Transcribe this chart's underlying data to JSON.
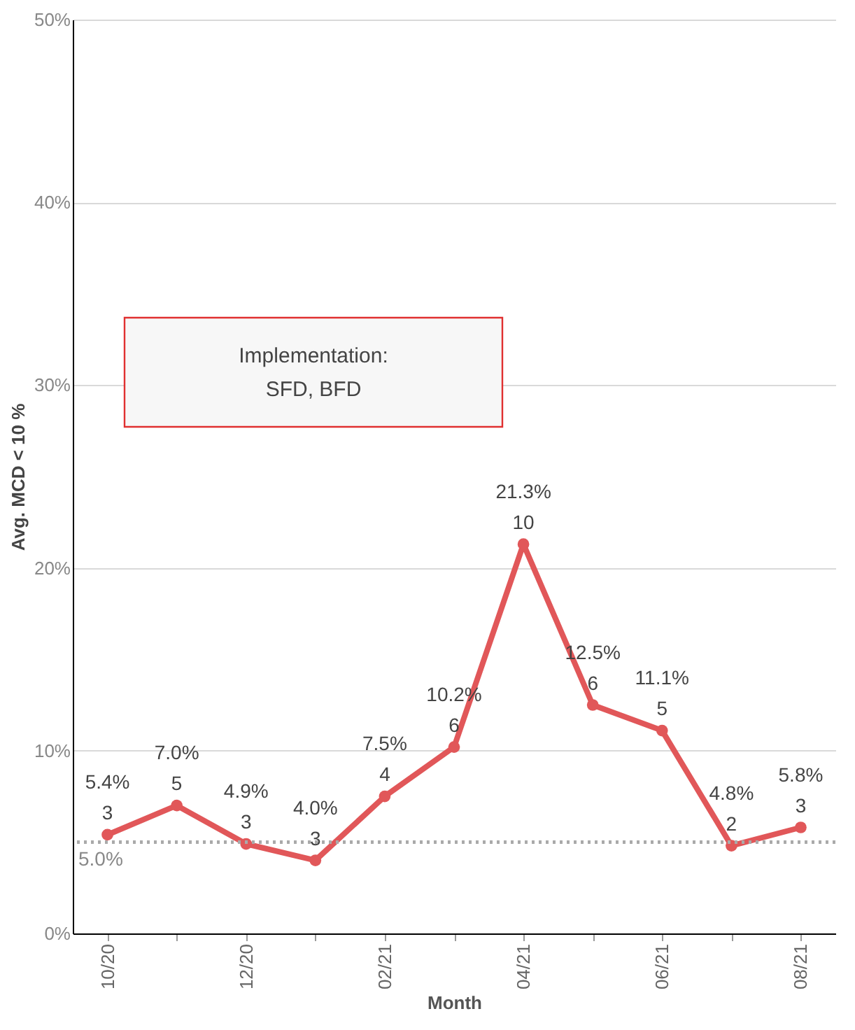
{
  "chart_data": {
    "type": "line",
    "xlabel": "Month",
    "ylabel": "Avg. MCD < 10 %",
    "categories": [
      "10/20",
      null,
      "12/20",
      null,
      "02/21",
      null,
      "04/21",
      null,
      "06/21",
      null,
      "08/21"
    ],
    "series": [
      {
        "color": "#e15759",
        "values": [
          5.4,
          7.0,
          4.9,
          4.0,
          7.5,
          10.2,
          21.3,
          12.5,
          11.1,
          4.8,
          5.8
        ],
        "value_labels": [
          "5.4%\n3",
          "7.0%\n5",
          "4.9%\n3",
          "4.0%\n3",
          "7.5%\n4",
          "10.2%\n6",
          "21.3%\n10",
          "12.5%\n6",
          "11.1%\n5",
          "4.8%\n2",
          "5.8%\n3"
        ]
      }
    ],
    "ylim": [
      0,
      50
    ],
    "yticks": [
      {
        "value": 0,
        "label": "0%"
      },
      {
        "value": 10,
        "label": "10%"
      },
      {
        "value": 20,
        "label": "20%"
      },
      {
        "value": 30,
        "label": "30%"
      },
      {
        "value": 40,
        "label": "40%"
      },
      {
        "value": 50,
        "label": "50%"
      }
    ],
    "grid": "y",
    "marker": "circle",
    "line_style": "solid",
    "ref_lines": [
      {
        "axis": "y",
        "value": 5.0,
        "label": "5.0%",
        "color": "#aaaaaa",
        "line_style": "dotted"
      }
    ],
    "annotations": [
      "Implementation:\nSFD, BFD"
    ]
  }
}
